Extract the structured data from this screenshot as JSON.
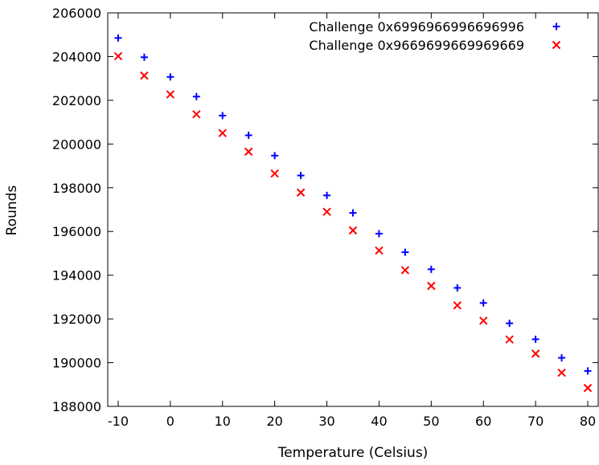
{
  "chart_data": {
    "type": "scatter",
    "xlabel": "Temperature (Celsius)",
    "ylabel": "Rounds",
    "xlim": [
      -12,
      82
    ],
    "ylim": [
      188000,
      206000
    ],
    "xticks": [
      -10,
      0,
      10,
      20,
      30,
      40,
      50,
      60,
      70,
      80
    ],
    "yticks": [
      188000,
      190000,
      192000,
      194000,
      196000,
      198000,
      200000,
      202000,
      204000,
      206000
    ],
    "grid": false,
    "legend_position": "top-right",
    "x": [
      -10,
      -5,
      0,
      5,
      10,
      15,
      20,
      25,
      30,
      35,
      40,
      45,
      50,
      55,
      60,
      65,
      70,
      75,
      80
    ],
    "series": [
      {
        "name": "Challenge 0x6996966996696996",
        "marker": "plus",
        "color": "#0000ff",
        "values": [
          204850,
          203970,
          203070,
          202170,
          201300,
          200400,
          199470,
          198560,
          197650,
          196850,
          195900,
          195050,
          194270,
          193420,
          192730,
          191800,
          191070,
          190220,
          189620
        ]
      },
      {
        "name": "Challenge 0x9669699669969669",
        "marker": "cross",
        "color": "#ff0000",
        "values": [
          204020,
          203130,
          202270,
          201360,
          200500,
          199650,
          198650,
          197780,
          196900,
          196050,
          195130,
          194230,
          193510,
          192620,
          191920,
          191060,
          190410,
          189540,
          188840
        ]
      }
    ]
  }
}
